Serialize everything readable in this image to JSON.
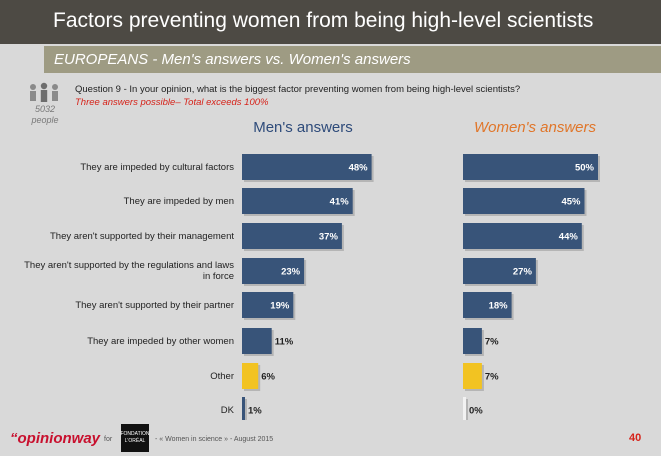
{
  "header": {
    "title": "Factors preventing women from being high-level scientists",
    "subtitle": "EUROPEANS - Men's answers vs. Women's answers"
  },
  "sample": {
    "count": "5032",
    "label": "people",
    "icon": "people-icon"
  },
  "question": {
    "text": "Question 9 - In your opinion, what is the biggest factor preventing women from being high-level scientists?",
    "note": "Three answers possible– Total exceeds 100%"
  },
  "colors": {
    "bar": "#385479",
    "highlight": "#f2c322",
    "men_heading": "#2e4b7a",
    "women_heading": "#e0762a"
  },
  "chart_data": {
    "type": "bar",
    "orientation": "horizontal",
    "unit": "%",
    "categories": [
      "They are impeded by cultural factors",
      "They are impeded by men",
      "They aren't supported by their management",
      "They aren't supported by the regulations and laws in force",
      "They aren't supported by their partner",
      "They are impeded by other women",
      "Other",
      "DK"
    ],
    "series": [
      {
        "name": "Men's answers",
        "values": [
          48,
          41,
          37,
          23,
          19,
          11,
          6,
          1
        ]
      },
      {
        "name": "Women's answers",
        "values": [
          50,
          45,
          44,
          27,
          18,
          7,
          7,
          0
        ]
      }
    ],
    "highlight_categories": [
      "Other"
    ]
  },
  "footer": {
    "brand_prefix": "“opinion",
    "brand_suffix": "way",
    "for_label": "for",
    "partner_line1": "FONDATION",
    "partner_line2": "L'ORÉAL",
    "text": "- « Women in science » - August 2015",
    "page": "40"
  }
}
